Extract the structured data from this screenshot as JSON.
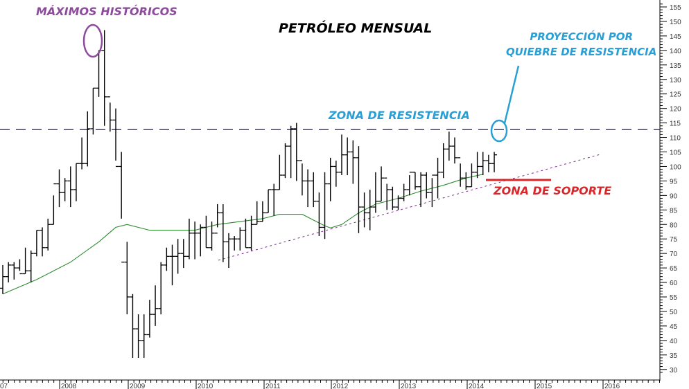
{
  "chart_data": {
    "type": "ohlc",
    "title": "PETRÓLEO MENSUAL",
    "xlabel": "",
    "ylabel": "",
    "y_ticks": [
      155,
      150,
      145,
      140,
      135,
      130,
      125,
      120,
      115,
      110,
      105,
      100,
      95,
      90,
      85,
      80,
      75,
      70,
      65,
      60,
      55,
      50,
      45,
      40,
      35,
      30
    ],
    "ylim": [
      28,
      158
    ],
    "x_ticks": [
      "07",
      "2008",
      "2009",
      "2010",
      "2011",
      "2012",
      "2013",
      "2014",
      "2015",
      "2016"
    ],
    "grid": false,
    "annotations": {
      "max_label": "MÁXIMOS  HISTÓRICOS",
      "resistance_label": "ZONA DE RESISTENCIA",
      "resistance_level": 112.7,
      "projection_label_line1": "PROYECCIÓN POR",
      "projection_label_line2": "QUIEBRE DE RESISTENCIA",
      "support_label": "ZONA DE SOPORTE",
      "support_level": 95.5
    },
    "colors": {
      "bars": "#000000",
      "moving_average": "#2e8b2e",
      "resistance_line": "#1f1f6b",
      "trendline": "#7a2e8c",
      "max_circle": "#8e4a9c",
      "projection": "#2a9fd6",
      "support": "#d9262b"
    },
    "series": [
      {
        "name": "monthly_ohlc",
        "start": "2007-01",
        "bars": [
          [
            58,
            66,
            56,
            62
          ],
          [
            62,
            67,
            60,
            66
          ],
          [
            66,
            67,
            61,
            65
          ],
          [
            65,
            68,
            64,
            63
          ],
          [
            63,
            72,
            63,
            64
          ],
          [
            64,
            71,
            60,
            70
          ],
          [
            70,
            78,
            69,
            78
          ],
          [
            78,
            79,
            69,
            72
          ],
          [
            72,
            82,
            71,
            80
          ],
          [
            80,
            90,
            80,
            94
          ],
          [
            94,
            99,
            86,
            91
          ],
          [
            91,
            96,
            88,
            95
          ],
          [
            95,
            100,
            86,
            92
          ],
          [
            92,
            101,
            88,
            101
          ],
          [
            101,
            110,
            99,
            101
          ],
          [
            101,
            119,
            100,
            113
          ],
          [
            113,
            127,
            111,
            127
          ],
          [
            127,
            140,
            124,
            140
          ],
          [
            140,
            147,
            114,
            124
          ],
          [
            124,
            122,
            112,
            116
          ],
          [
            116,
            120,
            102,
            100
          ],
          [
            100,
            105,
            82,
            67
          ],
          [
            67,
            74,
            49,
            55
          ],
          [
            55,
            56,
            34,
            44
          ],
          [
            44,
            49,
            34,
            40
          ],
          [
            40,
            49,
            34,
            42
          ],
          [
            42,
            54,
            41,
            49
          ],
          [
            49,
            59,
            45,
            51
          ],
          [
            51,
            67,
            49,
            66
          ],
          [
            66,
            72,
            64,
            69
          ],
          [
            69,
            73,
            59,
            69
          ],
          [
            69,
            75,
            63,
            70
          ],
          [
            70,
            75,
            65,
            69
          ],
          [
            69,
            82,
            68,
            77
          ],
          [
            77,
            81,
            68,
            77
          ],
          [
            77,
            80,
            69,
            79
          ],
          [
            79,
            83,
            72,
            72
          ],
          [
            72,
            81,
            71,
            77
          ],
          [
            77,
            87,
            79,
            84
          ],
          [
            84,
            87,
            67,
            74
          ],
          [
            74,
            77,
            65,
            75
          ],
          [
            75,
            76,
            71,
            75
          ],
          [
            75,
            79,
            71,
            78
          ],
          [
            78,
            82,
            72,
            72
          ],
          [
            72,
            83,
            71,
            80
          ],
          [
            80,
            88,
            80,
            81
          ],
          [
            81,
            88,
            81,
            84
          ],
          [
            84,
            92,
            84,
            92
          ],
          [
            92,
            94,
            83,
            92
          ],
          [
            92,
            104,
            92,
            97
          ],
          [
            97,
            108,
            96,
            107
          ],
          [
            107,
            114,
            96,
            113
          ],
          [
            113,
            115,
            95,
            102
          ],
          [
            102,
            101,
            90,
            95
          ],
          [
            95,
            99,
            86,
            95
          ],
          [
            95,
            98,
            86,
            88
          ],
          [
            88,
            91,
            76,
            79
          ],
          [
            79,
            98,
            75,
            94
          ],
          [
            94,
            103,
            88,
            100
          ],
          [
            100,
            102,
            93,
            98
          ],
          [
            98,
            111,
            97,
            104
          ],
          [
            104,
            110,
            97,
            105
          ],
          [
            105,
            109,
            94,
            103
          ],
          [
            103,
            107,
            77,
            86
          ],
          [
            86,
            91,
            79,
            84
          ],
          [
            84,
            92,
            78,
            86
          ],
          [
            86,
            98,
            84,
            88
          ],
          [
            88,
            100,
            88,
            96
          ],
          [
            96,
            94,
            85,
            92
          ],
          [
            92,
            93,
            85,
            86
          ],
          [
            86,
            90,
            85,
            89
          ],
          [
            89,
            94,
            88,
            92
          ],
          [
            92,
            97,
            90,
            98
          ],
          [
            98,
            98,
            92,
            93
          ],
          [
            93,
            98,
            86,
            97
          ],
          [
            97,
            98,
            89,
            91
          ],
          [
            91,
            96,
            86,
            97
          ],
          [
            97,
            103,
            89,
            98
          ],
          [
            98,
            108,
            96,
            106
          ],
          [
            106,
            112,
            102,
            107
          ],
          [
            107,
            110,
            101,
            103
          ],
          [
            103,
            101,
            93,
            96
          ],
          [
            96,
            98,
            92,
            93
          ],
          [
            93,
            101,
            93,
            98
          ],
          [
            98,
            105,
            96,
            100
          ],
          [
            100,
            105,
            97,
            102
          ],
          [
            102,
            104,
            98,
            101
          ],
          [
            101,
            105,
            98,
            104
          ]
        ]
      },
      {
        "name": "moving_average",
        "type": "line",
        "points": [
          [
            0,
            56
          ],
          [
            6,
            61
          ],
          [
            12,
            67
          ],
          [
            17,
            74
          ],
          [
            20,
            79
          ],
          [
            22,
            80
          ],
          [
            26,
            78
          ],
          [
            30,
            78
          ],
          [
            34,
            78
          ],
          [
            38,
            80
          ],
          [
            42,
            81
          ],
          [
            46,
            82
          ],
          [
            49,
            83.5
          ],
          [
            53,
            83.5
          ],
          [
            55,
            81.5
          ],
          [
            57,
            79.5
          ],
          [
            58,
            78.8
          ],
          [
            60,
            80
          ],
          [
            63,
            84
          ],
          [
            66,
            87
          ],
          [
            70,
            89
          ],
          [
            74,
            91.5
          ],
          [
            78,
            93.5
          ],
          [
            82,
            96
          ],
          [
            85,
            97.3
          ]
        ]
      }
    ]
  },
  "labels": {
    "title": "PETRÓLEO MENSUAL",
    "max": "MÁXIMOS  HISTÓRICOS",
    "projection_1": "PROYECCIÓN POR",
    "projection_2": "QUIEBRE DE RESISTENCIA",
    "resistance": "ZONA DE RESISTENCIA",
    "support": "ZONA DE SOPORTE"
  }
}
